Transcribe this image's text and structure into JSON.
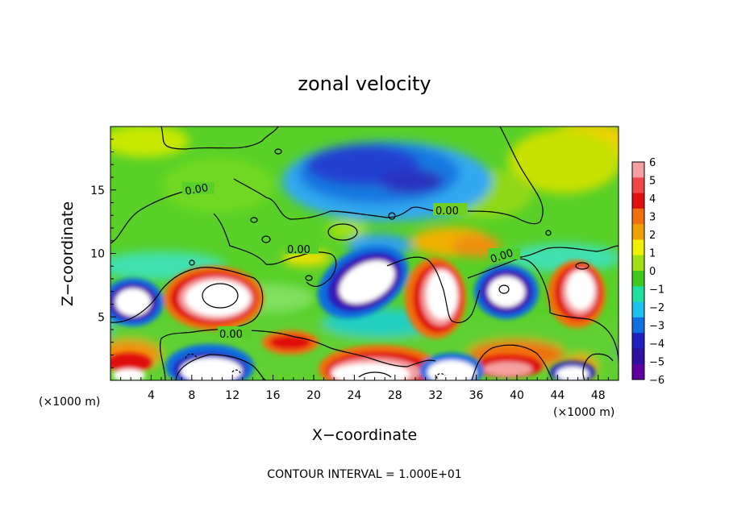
{
  "chart_data": {
    "type": "heatmap",
    "title": "zonal velocity",
    "xlabel": "X−coordinate",
    "ylabel": "Z−coordinate",
    "x_unit_left": "(×1000 m)",
    "x_unit_right": "(×1000 m)",
    "x_ticks": [
      "4",
      "8",
      "12",
      "16",
      "20",
      "24",
      "28",
      "32",
      "36",
      "40",
      "44",
      "48"
    ],
    "y_ticks": [
      "5",
      "10",
      "15"
    ],
    "xlim": [
      0,
      50
    ],
    "ylim": [
      0,
      20
    ],
    "colorbar": {
      "ticks": [
        "6",
        "5",
        "4",
        "3",
        "2",
        "1",
        "0",
        "−1",
        "−2",
        "−3",
        "−4",
        "−5",
        "−6"
      ],
      "colors": [
        "#f4a0a0",
        "#f04848",
        "#e01010",
        "#f07010",
        "#f0a000",
        "#f0f000",
        "#a0e010",
        "#40c820",
        "#20e0a0",
        "#20c0f0",
        "#1070e0",
        "#2020c0",
        "#3010a0",
        "#6000a0"
      ]
    },
    "contour_labels": [
      "0.00",
      "0.00",
      "0.00",
      "0.00",
      "0.00",
      "0.00"
    ],
    "footer": "CONTOUR INTERVAL = 1.000E+01"
  }
}
